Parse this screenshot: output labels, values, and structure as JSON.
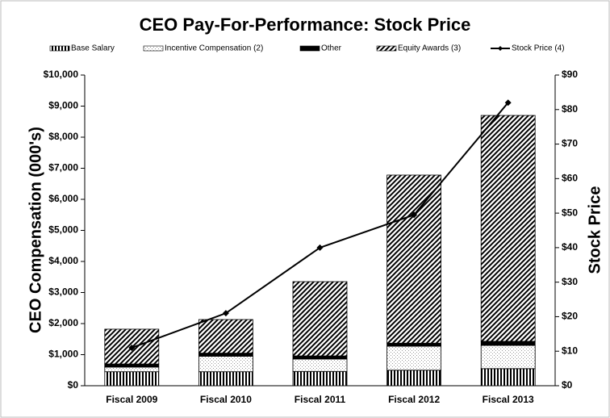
{
  "chart_data": {
    "type": "bar",
    "title": "CEO Pay-For-Performance: Stock Price",
    "y_label": "CEO Compensation (000's)",
    "y2_label": "Stock Price",
    "categories": [
      "Fiscal 2009",
      "Fiscal 2010",
      "Fiscal 2011",
      "Fiscal 2012",
      "Fiscal 2013"
    ],
    "stacked": true,
    "series": [
      {
        "name": "Base Salary",
        "color": "#000000",
        "values": [
          450,
          450,
          460,
          500,
          550
        ]
      },
      {
        "name": "Incentive Compensation (2)",
        "color": "#bbbbbb",
        "values": [
          150,
          500,
          400,
          770,
          750
        ]
      },
      {
        "name": "Other",
        "color": "#000000",
        "values": [
          100,
          100,
          100,
          100,
          130
        ]
      },
      {
        "name": "Equity Awards (3)",
        "color": "#000000",
        "values": [
          1120,
          1080,
          2390,
          5410,
          7270
        ]
      },
      {
        "name": "Stock Price (4)",
        "type": "line",
        "axis": "y2",
        "color": "#000000",
        "values": [
          11,
          21,
          40,
          49.5,
          82
        ]
      }
    ],
    "ylim": [
      0,
      10000
    ],
    "yticks": [
      {
        "value": 0,
        "label": "$0"
      },
      {
        "value": 1000,
        "label": "$1,000"
      },
      {
        "value": 2000,
        "label": "$2,000"
      },
      {
        "value": 3000,
        "label": "$3,000"
      },
      {
        "value": 4000,
        "label": "$4,000"
      },
      {
        "value": 5000,
        "label": "$5,000"
      },
      {
        "value": 6000,
        "label": "$6,000"
      },
      {
        "value": 7000,
        "label": "$7,000"
      },
      {
        "value": 8000,
        "label": "$8,000"
      },
      {
        "value": 9000,
        "label": "$9,000"
      },
      {
        "value": 10000,
        "label": "$10,000"
      }
    ],
    "y2lim": [
      0,
      90
    ],
    "y2ticks": [
      {
        "value": 0,
        "label": "$0"
      },
      {
        "value": 10,
        "label": "$10"
      },
      {
        "value": 20,
        "label": "$20"
      },
      {
        "value": 30,
        "label": "$30"
      },
      {
        "value": 40,
        "label": "$40"
      },
      {
        "value": 50,
        "label": "$50"
      },
      {
        "value": 60,
        "label": "$60"
      },
      {
        "value": 70,
        "label": "$70"
      },
      {
        "value": 80,
        "label": "$80"
      },
      {
        "value": 90,
        "label": "$90"
      }
    ],
    "legend": "top"
  }
}
